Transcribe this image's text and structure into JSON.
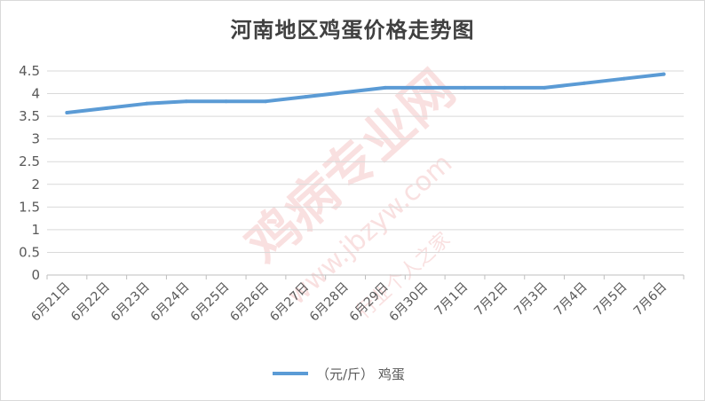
{
  "chart_data": {
    "type": "line",
    "title": "河南地区鸡蛋价格走势图",
    "categories": [
      "6月21日",
      "6月22日",
      "6月23日",
      "6月24日",
      "6月25日",
      "6月26日",
      "6月27日",
      "6月28日",
      "6月29日",
      "6月30日",
      "7月1日",
      "7月2日",
      "7月3日",
      "7月4日",
      "7月5日",
      "7月6日"
    ],
    "series": [
      {
        "name": "（元/斤） 鸡蛋",
        "values": [
          3.58,
          3.68,
          3.78,
          3.83,
          3.83,
          3.83,
          3.93,
          4.03,
          4.13,
          4.13,
          4.13,
          4.13,
          4.13,
          4.23,
          4.33,
          4.43
        ],
        "color": "#5b9bd5"
      }
    ],
    "ylim": [
      0,
      4.5
    ],
    "yticks": [
      "0",
      "0.5",
      "1",
      "1.5",
      "2",
      "2.5",
      "3",
      "3.5",
      "4",
      "4.5"
    ],
    "grid": true,
    "legend_position": "bottom"
  },
  "watermark": {
    "text_cn": "鸡病专业网",
    "text_url": "www.jbzyw.com",
    "text_small": "行业个人之家",
    "color": "#e05050"
  }
}
